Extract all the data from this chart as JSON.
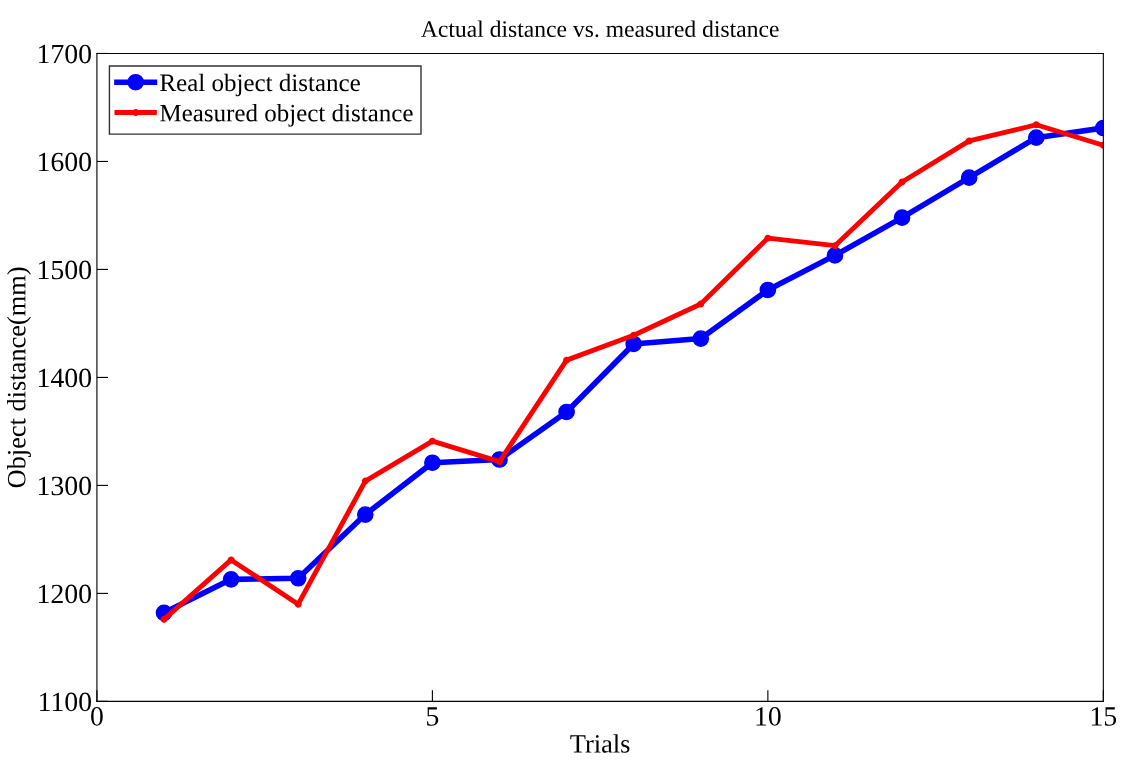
{
  "chart_data": {
    "type": "line",
    "title": "Actual distance vs. measured distance",
    "xlabel": "Trials",
    "ylabel": "Object distance(mm)",
    "x": [
      1,
      2,
      3,
      4,
      5,
      6,
      7,
      8,
      9,
      10,
      11,
      12,
      13,
      14,
      15
    ],
    "series": [
      {
        "name": "Real object distance",
        "color": "#0000ff",
        "marker": "circle",
        "values": [
          1182,
          1213,
          1214,
          1273,
          1321,
          1324,
          1368,
          1431,
          1436,
          1481,
          1513,
          1548,
          1585,
          1622,
          1631
        ]
      },
      {
        "name": "Measured object distance",
        "color": "#ff0000",
        "marker": "circle",
        "values": [
          1176,
          1231,
          1190,
          1304,
          1341,
          1322,
          1416,
          1439,
          1468,
          1529,
          1522,
          1581,
          1619,
          1634,
          1615
        ]
      }
    ],
    "xlim": [
      0,
      15
    ],
    "xticks": [
      0,
      5,
      10,
      15
    ],
    "ylim": [
      1100,
      1700
    ],
    "yticks": [
      1100,
      1200,
      1300,
      1400,
      1500,
      1600,
      1700
    ],
    "grid": false,
    "legend": "top left",
    "line_style": "solid"
  }
}
